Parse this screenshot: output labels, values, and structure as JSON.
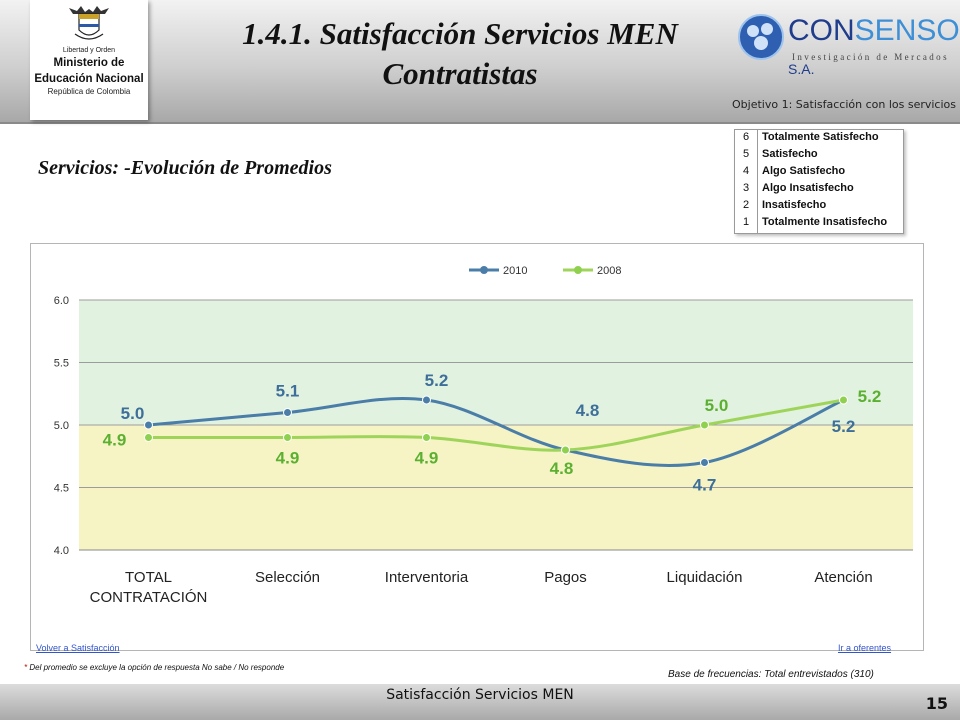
{
  "header": {
    "title_line1": "1.4.1. Satisfacción Servicios MEN",
    "title_line2": "Contratistas",
    "ministry_small": "Libertad y Orden",
    "ministry_line1": "Ministerio de",
    "ministry_line2": "Educación Nacional",
    "ministry_line3": "República de Colombia",
    "brand_name_a": "CON",
    "brand_name_b": "SENSO",
    "brand_suffix": " S.A.",
    "brand_tagline": "Investigación de Mercados",
    "objective": "Objetivo 1: Satisfacción con los servicios",
    "colors": {
      "brand_blue": "#1f3d8c",
      "brand_light": "#3f8fd6"
    }
  },
  "subtitle": "Servicios: -Evolución de Promedios",
  "scale_legend": [
    {
      "num": "6",
      "label": "Totalmente Satisfecho"
    },
    {
      "num": "5",
      "label": "Satisfecho"
    },
    {
      "num": "4",
      "label": "Algo Satisfecho"
    },
    {
      "num": "3",
      "label": "Algo Insatisfecho"
    },
    {
      "num": "2",
      "label": "Insatisfecho"
    },
    {
      "num": "1",
      "label": "Totalmente Insatisfecho"
    }
  ],
  "chart_data": {
    "type": "line",
    "categories": [
      "TOTAL\nCONTRATACIÓN",
      "Selección",
      "Interventoria",
      "Pagos",
      "Liquidación",
      "Atención"
    ],
    "series": [
      {
        "name": "2010",
        "color": "#4a7ea8",
        "values": [
          5.0,
          5.1,
          5.2,
          4.8,
          4.7,
          5.2
        ],
        "labels": [
          "5.0",
          "5.1",
          "5.2",
          "4.8",
          "4.7",
          "5.2"
        ]
      },
      {
        "name": "2008",
        "color": "#8fd14f",
        "values": [
          4.9,
          4.9,
          4.9,
          4.8,
          5.0,
          5.2
        ],
        "labels": [
          "4.9",
          "4.9",
          "4.9",
          "4.8",
          "5.0",
          "5.2"
        ]
      }
    ],
    "ylim": [
      4.0,
      6.0
    ],
    "yticks": [
      "4.0",
      "4.5",
      "5.0",
      "5.5",
      "6.0"
    ],
    "bands": [
      {
        "from": 5.0,
        "to": 6.0,
        "color": "#e2f2e0"
      },
      {
        "from": 4.0,
        "to": 5.0,
        "color": "#f6f4c4"
      }
    ],
    "legend": "top",
    "grid": true,
    "smooth": true
  },
  "links": {
    "back": "Volver a Satisfacción",
    "next": "Ir a oferentes"
  },
  "footnote": {
    "asterisk": "*",
    "text": " Del promedio se excluye la opción de respuesta No sabe / No responde"
  },
  "base": "Base de frecuencias: Total entrevistados (310)",
  "footer": {
    "text": "Satisfacción Servicios MEN",
    "page": "15"
  }
}
